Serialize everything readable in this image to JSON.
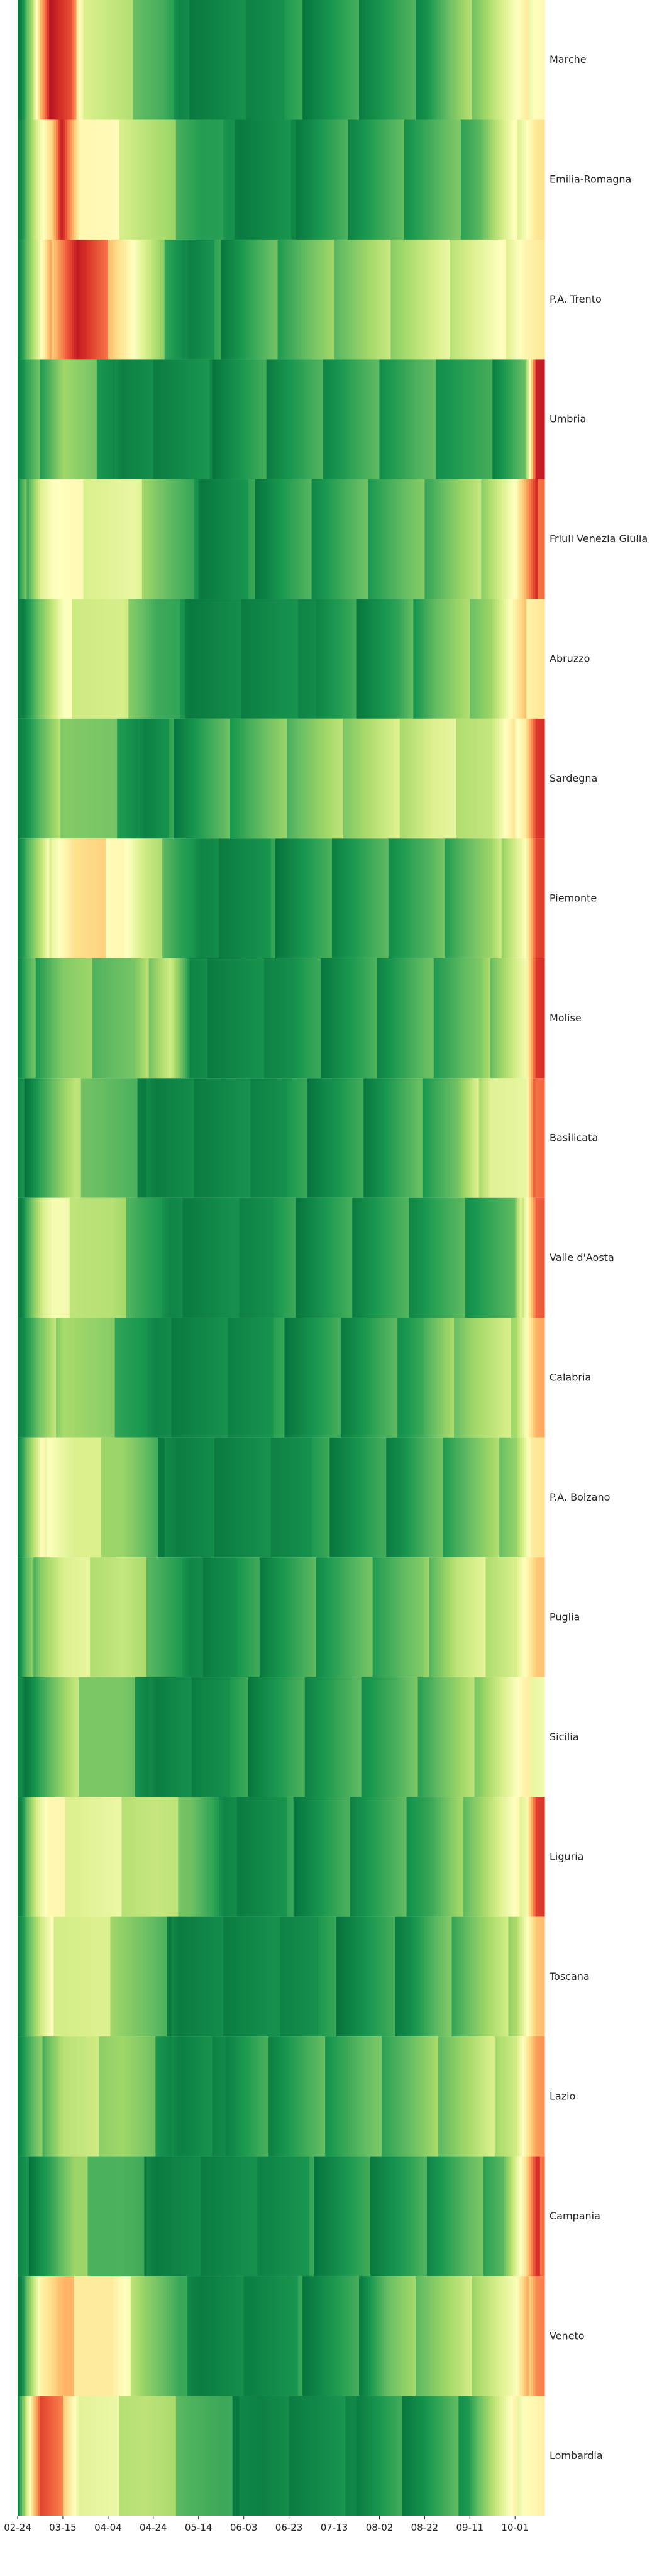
{
  "chart_data": {
    "type": "heatmap",
    "title": "",
    "xlabel": "",
    "ylabel": "",
    "colormap": [
      "#006837",
      "#1a9850",
      "#66bd63",
      "#a6d96a",
      "#d9ef8b",
      "#ffffbf",
      "#fee08b",
      "#fdae61",
      "#f46d43",
      "#d73027",
      "#a50026"
    ],
    "value_range": [
      0,
      1
    ],
    "x_ticks": [
      "02-24",
      "03-15",
      "04-04",
      "04-24",
      "05-14",
      "06-03",
      "06-23",
      "07-13",
      "08-02",
      "08-22",
      "09-11",
      "10-01"
    ],
    "rows": [
      {
        "label": "Marche",
        "segments": [
          [
            "02-24",
            0.05
          ],
          [
            "03-01",
            0.35
          ],
          [
            "03-05",
            0.7
          ],
          [
            "03-09",
            0.95
          ],
          [
            "03-18",
            0.8
          ],
          [
            "03-24",
            0.45
          ],
          [
            "04-10",
            0.3
          ],
          [
            "04-28",
            0.15
          ],
          [
            "05-05",
            0.05
          ],
          [
            "08-22",
            0.12
          ],
          [
            "09-15",
            0.3
          ],
          [
            "10-10",
            0.55
          ]
        ]
      },
      {
        "label": "Emilia-Romagna",
        "segments": [
          [
            "02-24",
            0.05
          ],
          [
            "03-03",
            0.4
          ],
          [
            "03-10",
            0.6
          ],
          [
            "03-15",
            0.95
          ],
          [
            "03-22",
            0.55
          ],
          [
            "04-10",
            0.45
          ],
          [
            "04-25",
            0.3
          ],
          [
            "05-15",
            0.12
          ],
          [
            "06-01",
            0.05
          ],
          [
            "08-20",
            0.15
          ],
          [
            "09-15",
            0.2
          ],
          [
            "10-10",
            0.6
          ]
        ]
      },
      {
        "label": "P.A. Trento",
        "segments": [
          [
            "02-24",
            0.05
          ],
          [
            "03-04",
            0.4
          ],
          [
            "03-10",
            0.7
          ],
          [
            "03-16",
            0.85
          ],
          [
            "03-21",
            0.95
          ],
          [
            "04-05",
            0.7
          ],
          [
            "04-15",
            0.5
          ],
          [
            "04-28",
            0.2
          ],
          [
            "05-10",
            0.05
          ],
          [
            "09-05",
            0.4
          ],
          [
            "09-25",
            0.45
          ],
          [
            "10-05",
            0.55
          ]
        ]
      },
      {
        "label": "Umbria",
        "segments": [
          [
            "02-24",
            0.05
          ],
          [
            "03-08",
            0.2
          ],
          [
            "03-15",
            0.3
          ],
          [
            "04-10",
            0.05
          ],
          [
            "08-20",
            0.15
          ],
          [
            "09-20",
            0.1
          ],
          [
            "10-05",
            0.2
          ],
          [
            "10-10",
            0.9
          ]
        ]
      },
      {
        "label": "Friuli Venezia Giulia",
        "segments": [
          [
            "02-24",
            0.05
          ],
          [
            "03-05",
            0.45
          ],
          [
            "03-10",
            0.5
          ],
          [
            "04-15",
            0.4
          ],
          [
            "04-30",
            0.2
          ],
          [
            "05-15",
            0.05
          ],
          [
            "08-25",
            0.2
          ],
          [
            "09-15",
            0.3
          ],
          [
            "10-01",
            0.5
          ],
          [
            "10-10",
            0.85
          ]
        ]
      },
      {
        "label": "Abruzzo",
        "segments": [
          [
            "02-24",
            0.05
          ],
          [
            "03-08",
            0.3
          ],
          [
            "03-15",
            0.45
          ],
          [
            "04-10",
            0.35
          ],
          [
            "04-25",
            0.15
          ],
          [
            "05-10",
            0.05
          ],
          [
            "08-10",
            0.1
          ],
          [
            "08-25",
            0.2
          ],
          [
            "09-20",
            0.3
          ],
          [
            "10-05",
            0.6
          ]
        ]
      },
      {
        "label": "Sardegna",
        "segments": [
          [
            "02-24",
            0.05
          ],
          [
            "03-08",
            0.2
          ],
          [
            "03-15",
            0.3
          ],
          [
            "04-10",
            0.15
          ],
          [
            "04-20",
            0.05
          ],
          [
            "08-25",
            0.4
          ],
          [
            "09-20",
            0.35
          ],
          [
            "10-05",
            0.6
          ],
          [
            "10-10",
            0.9
          ]
        ]
      },
      {
        "label": "Piemonte",
        "segments": [
          [
            "02-24",
            0.05
          ],
          [
            "03-05",
            0.3
          ],
          [
            "03-10",
            0.5
          ],
          [
            "03-20",
            0.6
          ],
          [
            "04-10",
            0.55
          ],
          [
            "04-20",
            0.35
          ],
          [
            "05-05",
            0.15
          ],
          [
            "05-15",
            0.05
          ],
          [
            "08-25",
            0.15
          ],
          [
            "09-20",
            0.25
          ],
          [
            "10-05",
            0.5
          ],
          [
            "10-10",
            0.85
          ]
        ]
      },
      {
        "label": "Molise",
        "segments": [
          [
            "02-24",
            0.05
          ],
          [
            "03-01",
            0.15
          ],
          [
            "03-15",
            0.25
          ],
          [
            "04-15",
            0.2
          ],
          [
            "05-01",
            0.4
          ],
          [
            "05-10",
            0.05
          ],
          [
            "07-25",
            0.1
          ],
          [
            "08-20",
            0.15
          ],
          [
            "09-15",
            0.2
          ],
          [
            "10-05",
            0.45
          ],
          [
            "10-10",
            0.85
          ]
        ]
      },
      {
        "label": "Basilicata",
        "segments": [
          [
            "02-24",
            0.05
          ],
          [
            "03-10",
            0.2
          ],
          [
            "03-20",
            0.3
          ],
          [
            "04-10",
            0.15
          ],
          [
            "04-25",
            0.05
          ],
          [
            "07-30",
            0.1
          ],
          [
            "08-20",
            0.15
          ],
          [
            "09-05",
            0.2
          ],
          [
            "09-20",
            0.45
          ],
          [
            "10-05",
            0.4
          ],
          [
            "10-10",
            0.85
          ]
        ]
      },
      {
        "label": "Valle d'Aosta",
        "segments": [
          [
            "02-24",
            0.05
          ],
          [
            "03-06",
            0.4
          ],
          [
            "03-10",
            0.45
          ],
          [
            "04-05",
            0.3
          ],
          [
            "04-20",
            0.15
          ],
          [
            "05-01",
            0.05
          ],
          [
            "09-30",
            0.15
          ],
          [
            "10-10",
            0.85
          ]
        ]
      },
      {
        "label": "Calabria",
        "segments": [
          [
            "02-24",
            0.05
          ],
          [
            "03-08",
            0.25
          ],
          [
            "03-15",
            0.35
          ],
          [
            "04-05",
            0.2
          ],
          [
            "04-25",
            0.05
          ],
          [
            "07-20",
            0.1
          ],
          [
            "08-20",
            0.15
          ],
          [
            "09-10",
            0.3
          ],
          [
            "10-01",
            0.35
          ],
          [
            "10-10",
            0.7
          ]
        ]
      },
      {
        "label": "P.A. Bolzano",
        "segments": [
          [
            "02-24",
            0.05
          ],
          [
            "03-03",
            0.35
          ],
          [
            "03-08",
            0.55
          ],
          [
            "03-20",
            0.4
          ],
          [
            "04-10",
            0.3
          ],
          [
            "04-25",
            0.1
          ],
          [
            "05-05",
            0.05
          ],
          [
            "08-10",
            0.1
          ],
          [
            "08-25",
            0.15
          ],
          [
            "09-10",
            0.2
          ],
          [
            "10-01",
            0.3
          ],
          [
            "10-08",
            0.55
          ]
        ]
      },
      {
        "label": "Puglia",
        "segments": [
          [
            "02-24",
            0.05
          ],
          [
            "03-05",
            0.3
          ],
          [
            "03-15",
            0.4
          ],
          [
            "04-10",
            0.35
          ],
          [
            "04-25",
            0.2
          ],
          [
            "05-10",
            0.05
          ],
          [
            "08-20",
            0.2
          ],
          [
            "09-05",
            0.35
          ],
          [
            "10-01",
            0.4
          ],
          [
            "10-10",
            0.6
          ]
        ]
      },
      {
        "label": "Sicilia",
        "segments": [
          [
            "02-24",
            0.05
          ],
          [
            "03-10",
            0.2
          ],
          [
            "03-20",
            0.3
          ],
          [
            "04-10",
            0.2
          ],
          [
            "04-25",
            0.05
          ],
          [
            "08-10",
            0.15
          ],
          [
            "08-25",
            0.2
          ],
          [
            "09-15",
            0.3
          ],
          [
            "10-05",
            0.5
          ]
        ]
      },
      {
        "label": "Liguria",
        "segments": [
          [
            "02-24",
            0.05
          ],
          [
            "03-03",
            0.4
          ],
          [
            "03-08",
            0.5
          ],
          [
            "03-20",
            0.45
          ],
          [
            "04-25",
            0.35
          ],
          [
            "05-10",
            0.25
          ],
          [
            "05-25",
            0.05
          ],
          [
            "08-25",
            0.15
          ],
          [
            "09-15",
            0.3
          ],
          [
            "10-05",
            0.5
          ],
          [
            "10-10",
            0.9
          ]
        ]
      },
      {
        "label": "Toscana",
        "segments": [
          [
            "02-24",
            0.05
          ],
          [
            "03-05",
            0.35
          ],
          [
            "03-10",
            0.45
          ],
          [
            "04-05",
            0.35
          ],
          [
            "04-25",
            0.15
          ],
          [
            "05-05",
            0.05
          ],
          [
            "08-15",
            0.1
          ],
          [
            "09-05",
            0.2
          ],
          [
            "10-01",
            0.35
          ],
          [
            "10-10",
            0.65
          ]
        ]
      },
      {
        "label": "Lazio",
        "segments": [
          [
            "02-24",
            0.05
          ],
          [
            "03-08",
            0.25
          ],
          [
            "03-15",
            0.35
          ],
          [
            "04-10",
            0.3
          ],
          [
            "04-25",
            0.15
          ],
          [
            "05-05",
            0.05
          ],
          [
            "08-15",
            0.2
          ],
          [
            "09-10",
            0.3
          ],
          [
            "10-01",
            0.4
          ],
          [
            "10-10",
            0.7
          ]
        ]
      },
      {
        "label": "Campania",
        "segments": [
          [
            "02-24",
            0.05
          ],
          [
            "03-10",
            0.15
          ],
          [
            "03-20",
            0.25
          ],
          [
            "04-10",
            0.15
          ],
          [
            "04-25",
            0.05
          ],
          [
            "08-15",
            0.1
          ],
          [
            "09-05",
            0.15
          ],
          [
            "09-25",
            0.2
          ],
          [
            "10-05",
            0.55
          ],
          [
            "10-10",
            0.85
          ]
        ]
      },
      {
        "label": "Veneto",
        "segments": [
          [
            "02-24",
            0.05
          ],
          [
            "03-01",
            0.35
          ],
          [
            "03-05",
            0.55
          ],
          [
            "03-15",
            0.65
          ],
          [
            "04-05",
            0.55
          ],
          [
            "04-20",
            0.3
          ],
          [
            "05-05",
            0.1
          ],
          [
            "05-15",
            0.05
          ],
          [
            "07-25",
            0.1
          ],
          [
            "08-05",
            0.2
          ],
          [
            "09-05",
            0.3
          ],
          [
            "10-01",
            0.45
          ],
          [
            "10-10",
            0.8
          ]
        ]
      },
      {
        "label": "Lombardia",
        "segments": [
          [
            "02-24",
            0.1
          ],
          [
            "03-01",
            0.6
          ],
          [
            "03-05",
            0.85
          ],
          [
            "03-15",
            0.7
          ],
          [
            "03-22",
            0.45
          ],
          [
            "04-20",
            0.35
          ],
          [
            "05-10",
            0.2
          ],
          [
            "05-25",
            0.1
          ],
          [
            "06-10",
            0.05
          ],
          [
            "08-20",
            0.1
          ],
          [
            "09-10",
            0.15
          ],
          [
            "10-05",
            0.55
          ]
        ]
      }
    ]
  }
}
